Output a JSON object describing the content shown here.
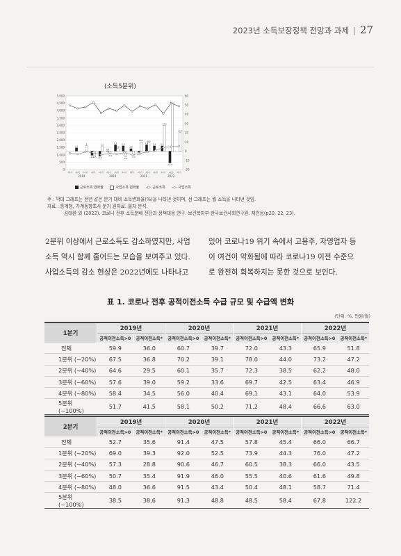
{
  "header": {
    "title": "2023년 소득보장정책 전망과 과제",
    "separator": "|",
    "page": "27"
  },
  "chart": {
    "caption": "(소득5분위)",
    "legend": [
      "근로소득 변화율",
      "사업소득 변화율",
      "근로소득",
      "사업소득"
    ],
    "colors": {
      "labor_bar": "#222222",
      "business_bar": "#ffffff",
      "labor_line": "#555555",
      "business_line": "#888888"
    }
  },
  "chart_data": {
    "type": "bar",
    "years": [
      "2019",
      "2020",
      "2021",
      "2022"
    ],
    "left_axis": {
      "ylim": [
        0,
        5000
      ],
      "ticks": [
        "5,000",
        "4,500",
        "4,000",
        "3,500",
        "3,000",
        "2,500",
        "2,000",
        "1,500",
        "1,000",
        "500",
        "0"
      ]
    },
    "right_axis": {
      "ylim": [
        -20,
        60
      ],
      "ticks": [
        "60",
        "50",
        "40",
        "30",
        "20",
        "10",
        "0",
        "-10",
        "-20"
      ]
    },
    "categories": [
      "1분기",
      "2분기",
      "3분기",
      "4분기",
      "1분기",
      "2분기",
      "3분기",
      "4분기",
      "1분기",
      "2분기",
      "3분기",
      "4분기",
      "1분기",
      "2분기",
      "3분기"
    ],
    "series": [
      {
        "name": "근로소득 변화율",
        "kind": "bar",
        "axis": "right",
        "values": [
          null,
          3.7,
          null,
          -4.5,
          -5.4,
          0.4,
          7.1,
          5.9,
          2.8,
          -1.4,
          7.1,
          5.9,
          5.8,
          -12.8,
          null
        ]
      },
      {
        "name": "사업소득 변화율",
        "kind": "bar",
        "axis": "right",
        "values": [
          null,
          null,
          6.0,
          -4.5,
          5.2,
          -2.9,
          2.8,
          -5.9,
          -4.4,
          10.1,
          8.9,
          null,
          27.9,
          51.1,
          20.3
        ]
      },
      {
        "name": "근로소득",
        "kind": "line",
        "axis": "left",
        "values": [
          4350,
          4150,
          4250,
          4550,
          3850,
          4150,
          4000,
          4350,
          3950,
          4300,
          4150,
          4400,
          3800,
          4500,
          4300
        ]
      },
      {
        "name": "사업소득",
        "kind": "line",
        "axis": "left",
        "values": [
          1100,
          1050,
          1200,
          1150,
          1000,
          1100,
          1050,
          1150,
          1000,
          1100,
          1200,
          1300,
          1500,
          1550,
          1600
        ]
      }
    ],
    "data_labels": [
      "6.0",
      "3.7",
      "5.2",
      "0.4",
      "7.1",
      "5.9",
      "2.8",
      "7.1",
      "5.9",
      "10.1",
      "8.9",
      "27.9",
      "51.1",
      "20.3",
      "-4.5",
      "-5.4",
      "-2.9",
      "-1.4",
      "-5.9",
      "-4.4",
      "-12.8",
      "5.8"
    ]
  },
  "notes": [
    "주 : 막대 그래프는 전년 같은 분기 대비 소득변화율(%)을 나타낸 것이며, 선 그래프는 월 소득을 나타낸 것임.",
    "자료 : 통계청, 가계동향조사 분기 원자료. 필자 분석.",
    "김태완 외 (2022). 코로나 전후 소득분배 진단과 정책대응 연구. 보건복지부·한국보건사회연구원. 재인용(p20, 22, 23)."
  ],
  "body": {
    "col1": [
      "2분위 이상에서 근로소득도 감소하였지만, 사업",
      "소득 역시 함께 줄어드는 모습을 보여주고 있다.",
      "사업소득의 감소 현상은 2022년에도 나타나고"
    ],
    "col2": [
      "있어 코로나19 위기 속에서 고용주, 자영업자 등",
      "이 여건이 악화됨에 따라 코로나19 이전 수준으",
      "로 완전히 회복하지는 못한 것으로 보인다."
    ]
  },
  "table_title": "표 1. 코로나 전후 공적이전소득 수급 규모 및 수급액 변화",
  "unit": "(단위: %, 만원/월)",
  "tables": [
    {
      "label": "1분기",
      "years": [
        "2019년",
        "2020년",
        "2021년",
        "2022년"
      ],
      "subheaders": [
        "공적이전소득>0",
        "공적이전소득*",
        "공적이전소득>0",
        "공적이전소득*",
        "공적이전소득>0",
        "공적이전소득*",
        "공적이전소득>0",
        "공적이전소득*"
      ],
      "rows": [
        {
          "label": "전체",
          "values": [
            "59.9",
            "36.0",
            "60.7",
            "39.7",
            "72.0",
            "43.3",
            "65.9",
            "51.8"
          ]
        },
        {
          "label": "1분위 (~20%)",
          "values": [
            "67.5",
            "36.8",
            "70.2",
            "39.1",
            "78.0",
            "44.0",
            "73.2",
            "47.2"
          ]
        },
        {
          "label": "2분위 (~40%)",
          "values": [
            "64.6",
            "29.5",
            "60.1",
            "35.7",
            "72.3",
            "38.5",
            "62.2",
            "48.0"
          ]
        },
        {
          "label": "3분위 (~60%)",
          "values": [
            "57.6",
            "39.0",
            "59.2",
            "33.6",
            "69.7",
            "42.5",
            "63.4",
            "46.9"
          ]
        },
        {
          "label": "4분위 (~80%)",
          "values": [
            "58.4",
            "34.5",
            "56.0",
            "40.4",
            "69.1",
            "43.1",
            "64.0",
            "53.9"
          ]
        },
        {
          "label": "5분위 (~100%)",
          "values": [
            "51.7",
            "41.5",
            "58.1",
            "50.2",
            "71.2",
            "48.4",
            "66.6",
            "63.0"
          ]
        }
      ]
    },
    {
      "label": "2분기",
      "years": [
        "2019년",
        "2020년",
        "2021년",
        "2022년"
      ],
      "subheaders": [
        "공적이전소득>0",
        "공적이전소득*",
        "공적이전소득>0",
        "공적이전소득*",
        "공적이전소득>0",
        "공적이전소득*",
        "공적이전소득>0",
        "공적이전소득*"
      ],
      "rows": [
        {
          "label": "전체",
          "values": [
            "52.7",
            "35.6",
            "91.4",
            "47.5",
            "57.8",
            "45.4",
            "66.0",
            "66.7"
          ]
        },
        {
          "label": "1분위 (~20%)",
          "values": [
            "69.0",
            "39.3",
            "92.0",
            "52.5",
            "73.9",
            "44.3",
            "76.0",
            "47.2"
          ]
        },
        {
          "label": "2분위 (~40%)",
          "values": [
            "57.3",
            "28.8",
            "90.6",
            "46.7",
            "60.5",
            "38.3",
            "66.0",
            "43.5"
          ]
        },
        {
          "label": "3분위 (~60%)",
          "values": [
            "50.7",
            "35.4",
            "91.9",
            "46.0",
            "55.5",
            "40.6",
            "61.6",
            "49.8"
          ]
        },
        {
          "label": "4분위 (~80%)",
          "values": [
            "48.0",
            "36.6",
            "91.5",
            "43.4",
            "50.4",
            "48.1",
            "58.7",
            "71.4"
          ]
        },
        {
          "label": "5분위 (~100%)",
          "values": [
            "38.5",
            "38.6",
            "91.3",
            "48.8",
            "48.5",
            "58.4",
            "67.8",
            "122.2"
          ]
        }
      ]
    }
  ]
}
